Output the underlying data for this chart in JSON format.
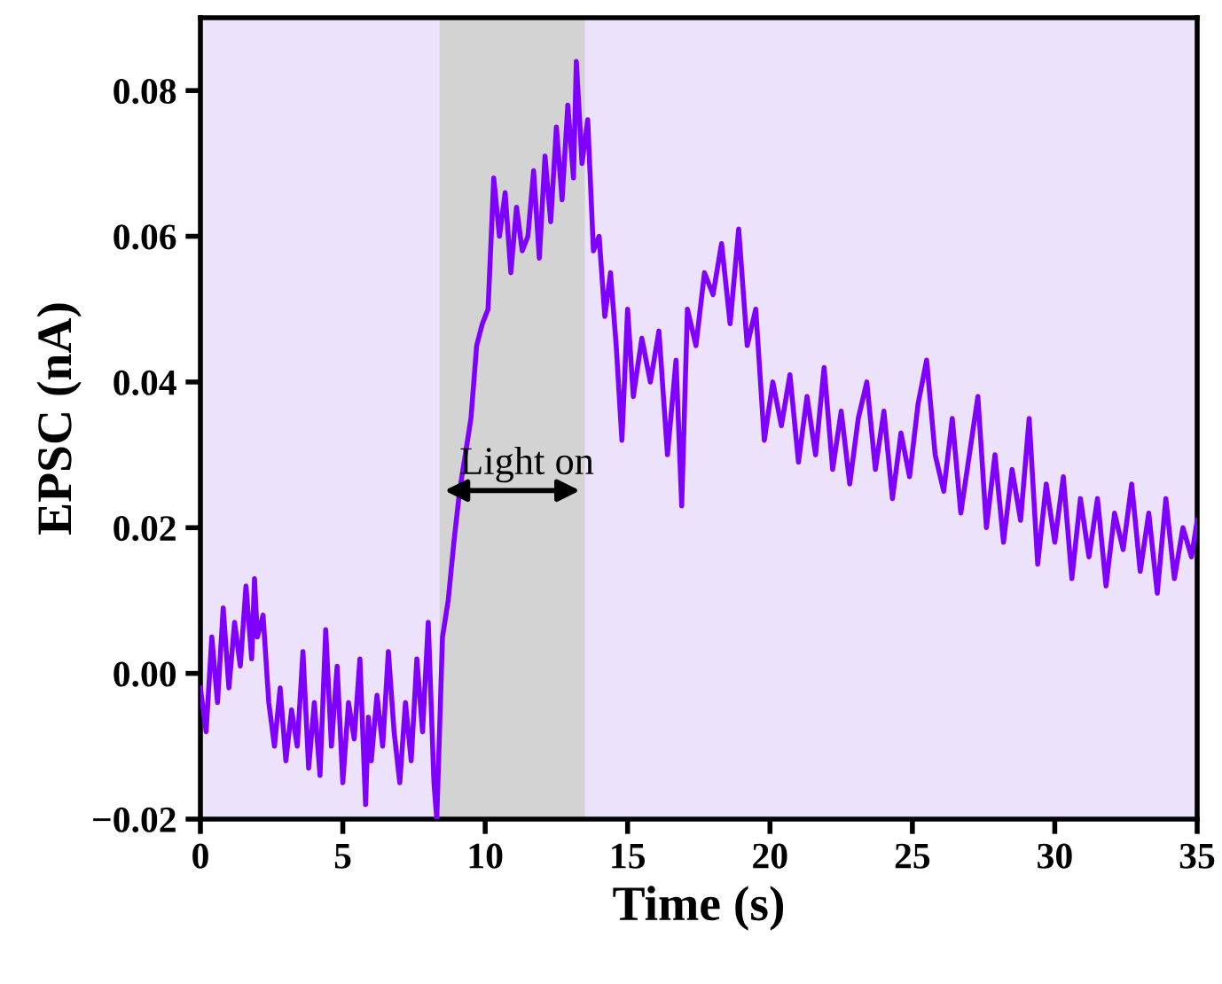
{
  "chart_data": {
    "type": "line",
    "xlabel": "Time (s)",
    "ylabel": "EPSC (nA)",
    "xlim": [
      0,
      35
    ],
    "ylim": [
      -0.02,
      0.09
    ],
    "xticks": [
      0,
      5,
      10,
      15,
      20,
      25,
      30,
      35
    ],
    "yticks": [
      {
        "value": -0.02,
        "label": "−0.02"
      },
      {
        "value": 0,
        "label": "0.00"
      },
      {
        "value": 0.02,
        "label": "0.02"
      },
      {
        "value": 0.04,
        "label": "0.04"
      },
      {
        "value": 0.06,
        "label": "0.06"
      },
      {
        "value": 0.08,
        "label": "0.08"
      }
    ],
    "grid": false,
    "legend": false,
    "marker": "none",
    "line_style": "solid",
    "bands": [
      {
        "axis": "x",
        "from": 8.4,
        "to": 13.5,
        "color": "#d3d3d3",
        "label": "Light on"
      }
    ],
    "series": [
      {
        "color": "#8000ff",
        "x": [
          0,
          0.2,
          0.4,
          0.6,
          0.8,
          1.0,
          1.2,
          1.4,
          1.6,
          1.8,
          1.9,
          2.0,
          2.2,
          2.4,
          2.6,
          2.8,
          3.0,
          3.2,
          3.4,
          3.6,
          3.8,
          4.0,
          4.2,
          4.4,
          4.6,
          4.8,
          5.0,
          5.2,
          5.4,
          5.6,
          5.8,
          5.9,
          6.0,
          6.2,
          6.4,
          6.6,
          6.8,
          7.0,
          7.2,
          7.4,
          7.6,
          7.8,
          8.0,
          8.2,
          8.3,
          8.5,
          8.7,
          8.9,
          9.1,
          9.3,
          9.5,
          9.7,
          9.9,
          10.1,
          10.3,
          10.5,
          10.7,
          10.9,
          11.1,
          11.3,
          11.5,
          11.7,
          11.9,
          12.1,
          12.3,
          12.5,
          12.7,
          12.9,
          13.1,
          13.2,
          13.4,
          13.6,
          13.8,
          14.0,
          14.2,
          14.4,
          14.6,
          14.8,
          15.0,
          15.2,
          15.5,
          15.8,
          16.1,
          16.4,
          16.7,
          16.9,
          17.1,
          17.4,
          17.7,
          18.0,
          18.3,
          18.6,
          18.9,
          19.2,
          19.5,
          19.8,
          20.1,
          20.4,
          20.7,
          21.0,
          21.3,
          21.6,
          21.9,
          22.2,
          22.5,
          22.8,
          23.1,
          23.4,
          23.7,
          24.0,
          24.3,
          24.6,
          24.9,
          25.2,
          25.5,
          25.8,
          26.1,
          26.4,
          26.7,
          27.0,
          27.3,
          27.6,
          27.9,
          28.2,
          28.5,
          28.8,
          29.1,
          29.4,
          29.7,
          30.0,
          30.3,
          30.6,
          30.9,
          31.2,
          31.5,
          31.8,
          32.1,
          32.4,
          32.7,
          33.0,
          33.3,
          33.6,
          33.9,
          34.2,
          34.5,
          34.8,
          35.0
        ],
        "values": [
          -0.002,
          -0.008,
          0.005,
          -0.004,
          0.009,
          -0.002,
          0.007,
          0.001,
          0.012,
          0.002,
          0.013,
          0.005,
          0.008,
          -0.004,
          -0.01,
          -0.002,
          -0.012,
          -0.005,
          -0.01,
          0.003,
          -0.013,
          -0.004,
          -0.014,
          0.006,
          -0.01,
          0.001,
          -0.015,
          -0.004,
          -0.009,
          0.002,
          -0.018,
          -0.006,
          -0.012,
          -0.003,
          -0.01,
          0.003,
          -0.008,
          -0.015,
          -0.004,
          -0.012,
          0.002,
          -0.008,
          0.007,
          -0.015,
          -0.02,
          0.005,
          0.01,
          0.018,
          0.025,
          0.03,
          0.035,
          0.045,
          0.048,
          0.05,
          0.068,
          0.06,
          0.066,
          0.055,
          0.064,
          0.058,
          0.06,
          0.069,
          0.057,
          0.071,
          0.062,
          0.075,
          0.065,
          0.078,
          0.068,
          0.084,
          0.07,
          0.076,
          0.058,
          0.06,
          0.049,
          0.055,
          0.045,
          0.032,
          0.05,
          0.038,
          0.046,
          0.04,
          0.047,
          0.03,
          0.043,
          0.023,
          0.05,
          0.045,
          0.055,
          0.052,
          0.059,
          0.048,
          0.061,
          0.045,
          0.05,
          0.032,
          0.04,
          0.034,
          0.041,
          0.029,
          0.038,
          0.03,
          0.042,
          0.028,
          0.036,
          0.026,
          0.035,
          0.04,
          0.028,
          0.036,
          0.024,
          0.033,
          0.027,
          0.037,
          0.043,
          0.03,
          0.025,
          0.035,
          0.022,
          0.03,
          0.038,
          0.02,
          0.03,
          0.018,
          0.028,
          0.021,
          0.035,
          0.015,
          0.026,
          0.018,
          0.027,
          0.013,
          0.024,
          0.016,
          0.024,
          0.012,
          0.022,
          0.017,
          0.026,
          0.014,
          0.022,
          0.011,
          0.024,
          0.013,
          0.02,
          0.016,
          0.021
        ]
      }
    ]
  }
}
